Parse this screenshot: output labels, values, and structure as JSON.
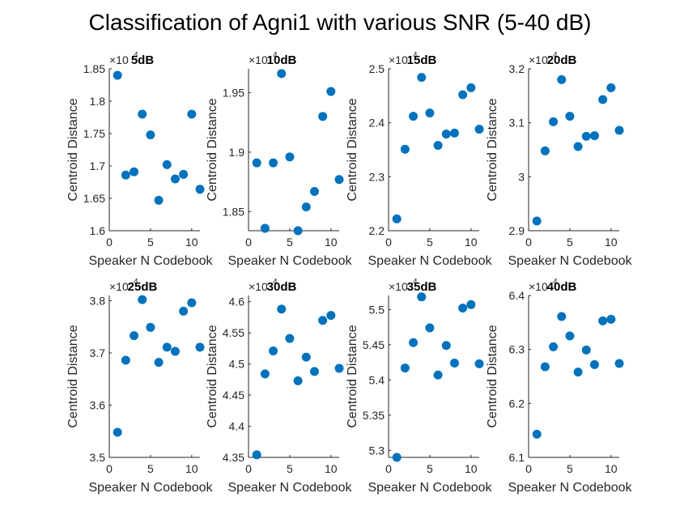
{
  "suptitle": "Classification of Agni1 with various SNR (5-40 dB)",
  "marker_color": "#0072BD",
  "chart_data": [
    {
      "type": "scatter",
      "title": "5dB",
      "exponent": "10⁴",
      "xlabel": "Speaker N Codebook",
      "ylabel": "Centroid Distance",
      "xlim": [
        0,
        11
      ],
      "ylim": [
        1.6,
        1.85
      ],
      "xticks": [
        0,
        5,
        10
      ],
      "xticklabels": [
        "0",
        "5",
        "10"
      ],
      "yticks": [
        1.6,
        1.65,
        1.7,
        1.75,
        1.8,
        1.85
      ],
      "yticklabels": [
        "1.6",
        "1.65",
        "1.7",
        "1.75",
        "1.8",
        "1.85"
      ],
      "x": [
        1,
        2,
        3,
        4,
        5,
        6,
        7,
        8,
        9,
        10,
        11
      ],
      "y": [
        1.84,
        1.686,
        1.691,
        1.78,
        1.748,
        1.647,
        1.702,
        1.68,
        1.687,
        1.78,
        1.664
      ]
    },
    {
      "type": "scatter",
      "title": "10dB",
      "exponent": "10⁴",
      "xlabel": "Speaker N Codebook",
      "ylabel": "Centroid Distance",
      "xlim": [
        0,
        11
      ],
      "ylim": [
        1.834,
        1.97
      ],
      "xticks": [
        0,
        5,
        10
      ],
      "xticklabels": [
        "0",
        "5",
        "10"
      ],
      "yticks": [
        1.85,
        1.9,
        1.95
      ],
      "yticklabels": [
        "1.85",
        "1.9",
        "1.95"
      ],
      "x": [
        1,
        2,
        3,
        4,
        5,
        6,
        7,
        8,
        9,
        10,
        11
      ],
      "y": [
        1.891,
        1.836,
        1.891,
        1.966,
        1.896,
        1.834,
        1.854,
        1.867,
        1.93,
        1.951,
        1.877
      ]
    },
    {
      "type": "scatter",
      "title": "15dB",
      "exponent": "10⁴",
      "xlabel": "Speaker N Codebook",
      "ylabel": "Centroid Distance",
      "xlim": [
        0,
        11
      ],
      "ylim": [
        2.2,
        2.5
      ],
      "xticks": [
        0,
        5,
        10
      ],
      "xticklabels": [
        "0",
        "5",
        "10"
      ],
      "yticks": [
        2.2,
        2.3,
        2.4,
        2.5
      ],
      "yticklabels": [
        "2.2",
        "2.3",
        "2.4",
        "2.5"
      ],
      "x": [
        1,
        2,
        3,
        4,
        5,
        6,
        7,
        8,
        9,
        10,
        11
      ],
      "y": [
        2.222,
        2.351,
        2.412,
        2.484,
        2.418,
        2.358,
        2.379,
        2.381,
        2.452,
        2.465,
        2.388
      ]
    },
    {
      "type": "scatter",
      "title": "20dB",
      "exponent": "10⁴",
      "xlabel": "Speaker N Codebook",
      "ylabel": "Centroid Distance",
      "xlim": [
        0,
        11
      ],
      "ylim": [
        2.9,
        3.2
      ],
      "xticks": [
        0,
        5,
        10
      ],
      "xticklabels": [
        "0",
        "5",
        "10"
      ],
      "yticks": [
        2.9,
        3,
        3.1,
        3.2
      ],
      "yticklabels": [
        "2.9",
        "3",
        "3.1",
        "3.2"
      ],
      "x": [
        1,
        2,
        3,
        4,
        5,
        6,
        7,
        8,
        9,
        10,
        11
      ],
      "y": [
        2.918,
        3.048,
        3.102,
        3.18,
        3.112,
        3.056,
        3.075,
        3.076,
        3.143,
        3.165,
        3.086
      ]
    },
    {
      "type": "scatter",
      "title": "25dB",
      "exponent": "10⁴",
      "xlabel": "Speaker N Codebook",
      "ylabel": "Centroid Distance",
      "xlim": [
        0,
        11
      ],
      "ylim": [
        3.5,
        3.81
      ],
      "xticks": [
        0,
        5,
        10
      ],
      "xticklabels": [
        "0",
        "5",
        "10"
      ],
      "yticks": [
        3.5,
        3.6,
        3.7,
        3.8
      ],
      "yticklabels": [
        "3.5",
        "3.6",
        "3.7",
        "3.8"
      ],
      "x": [
        1,
        2,
        3,
        4,
        5,
        6,
        7,
        8,
        9,
        10,
        11
      ],
      "y": [
        3.548,
        3.686,
        3.733,
        3.802,
        3.749,
        3.682,
        3.711,
        3.703,
        3.78,
        3.796,
        3.711
      ]
    },
    {
      "type": "scatter",
      "title": "30dB",
      "exponent": "10⁴",
      "xlabel": "Speaker N Codebook",
      "ylabel": "Centroid Distance",
      "xlim": [
        0,
        11
      ],
      "ylim": [
        4.35,
        4.61
      ],
      "xticks": [
        0,
        5,
        10
      ],
      "xticklabels": [
        "0",
        "5",
        "10"
      ],
      "yticks": [
        4.35,
        4.4,
        4.45,
        4.5,
        4.55,
        4.6
      ],
      "yticklabels": [
        "4.35",
        "4.4",
        "4.45",
        "4.5",
        "4.55",
        "4.6"
      ],
      "x": [
        1,
        2,
        3,
        4,
        5,
        6,
        7,
        8,
        9,
        10,
        11
      ],
      "y": [
        4.354,
        4.484,
        4.521,
        4.588,
        4.541,
        4.473,
        4.511,
        4.488,
        4.57,
        4.578,
        4.493
      ]
    },
    {
      "type": "scatter",
      "title": "35dB",
      "exponent": "10⁴",
      "xlabel": "Speaker N Codebook",
      "ylabel": "Centroid Distance",
      "xlim": [
        0,
        11
      ],
      "ylim": [
        5.29,
        5.52
      ],
      "xticks": [
        0,
        5,
        10
      ],
      "xticklabels": [
        "0",
        "5",
        "10"
      ],
      "yticks": [
        5.3,
        5.35,
        5.4,
        5.45,
        5.5
      ],
      "yticklabels": [
        "5.3",
        "5.35",
        "5.4",
        "5.45",
        "5.5"
      ],
      "x": [
        1,
        2,
        3,
        4,
        5,
        6,
        7,
        8,
        9,
        10,
        11
      ],
      "y": [
        5.29,
        5.417,
        5.453,
        5.518,
        5.474,
        5.407,
        5.449,
        5.424,
        5.502,
        5.507,
        5.423
      ]
    },
    {
      "type": "scatter",
      "title": "40dB",
      "exponent": "10⁴",
      "xlabel": "Speaker N Codebook",
      "ylabel": "Centroid Distance",
      "xlim": [
        0,
        11
      ],
      "ylim": [
        6.1,
        6.4
      ],
      "xticks": [
        0,
        5,
        10
      ],
      "xticklabels": [
        "0",
        "5",
        "10"
      ],
      "yticks": [
        6.1,
        6.2,
        6.3,
        6.4
      ],
      "yticklabels": [
        "6.1",
        "6.2",
        "6.3",
        "6.4"
      ],
      "x": [
        1,
        2,
        3,
        4,
        5,
        6,
        7,
        8,
        9,
        10,
        11
      ],
      "y": [
        6.143,
        6.268,
        6.305,
        6.361,
        6.325,
        6.258,
        6.299,
        6.272,
        6.353,
        6.356,
        6.274
      ]
    }
  ]
}
